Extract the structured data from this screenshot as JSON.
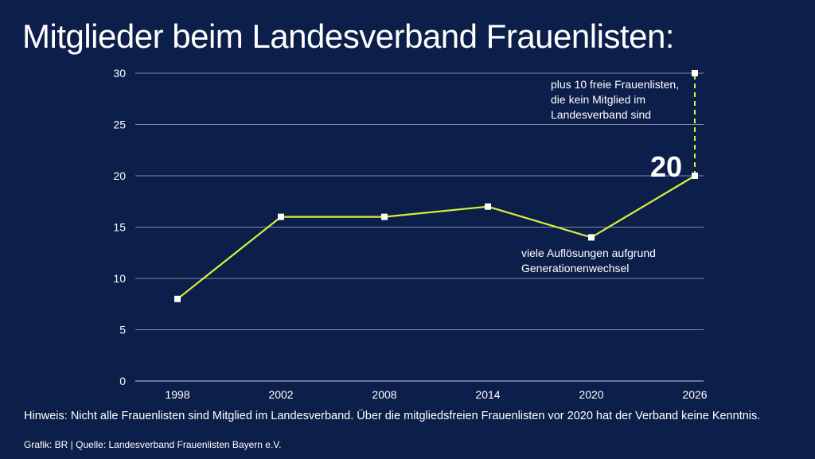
{
  "title": "Mitglieder beim Landesverband Frauenlisten:",
  "note": "Hinweis: Nicht alle Frauenlisten sind Mitglied im Landesverband. Über die mitgliedsfreien Frauenlisten vor 2020 hat der Verband keine Kenntnis.",
  "source": "Grafik: BR | Quelle: Landesverband Frauenlisten Bayern e.V.",
  "colors": {
    "background": "#0c1f4a",
    "line": "#d7f03a",
    "grid": "#7f8aa6",
    "text": "#ffffff"
  },
  "chart_data": {
    "type": "line",
    "categories": [
      "1998",
      "2002",
      "2008",
      "2014",
      "2020",
      "2026"
    ],
    "values": [
      8,
      16,
      16,
      17,
      14,
      20
    ],
    "extension": {
      "category": "2026",
      "from": 20,
      "to": 30,
      "style": "dashed"
    },
    "ylim": [
      0,
      30
    ],
    "yticks": [
      0,
      5,
      10,
      15,
      20,
      25,
      30
    ],
    "grid": true,
    "value_label": {
      "category": "2026",
      "text": "20"
    },
    "annotations": [
      {
        "category": "2026",
        "value": 30,
        "lines": [
          "plus 10 freie Frauenlisten,",
          "die kein Mitglied im",
          "Landesverband sind"
        ]
      },
      {
        "category": "2020",
        "value": 14,
        "lines": [
          "viele Auflösungen aufgrund",
          "Generationenwechsel"
        ]
      }
    ]
  }
}
